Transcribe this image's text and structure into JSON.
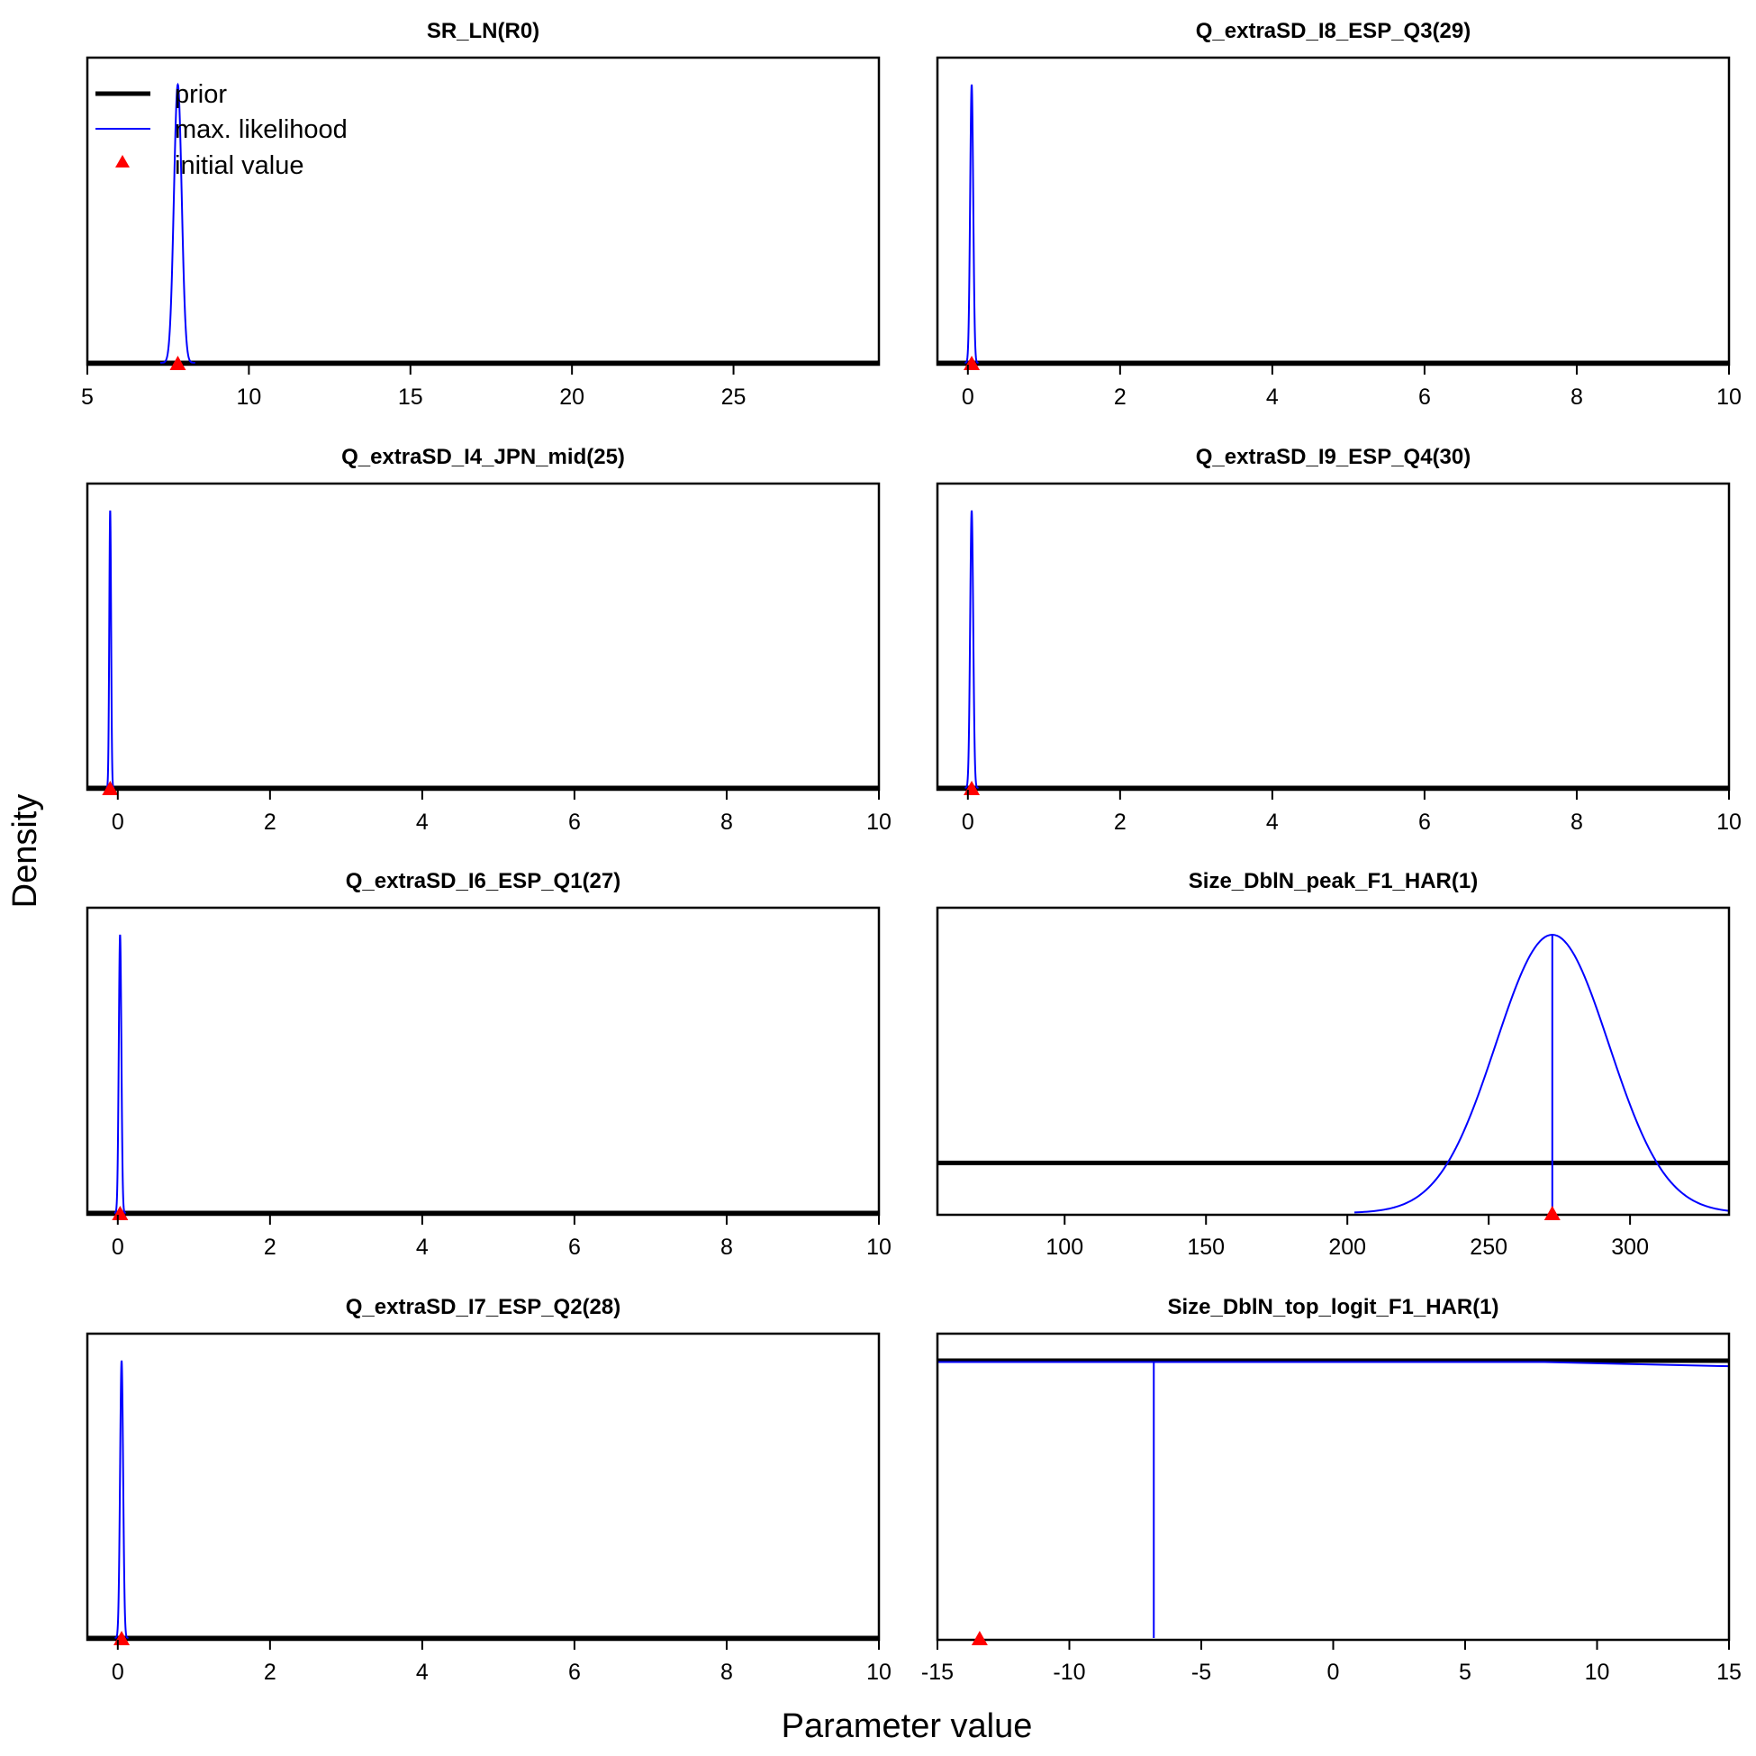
{
  "figure": {
    "ylabel": "Density",
    "xlabel": "Parameter value"
  },
  "legend": {
    "prior_label": "prior",
    "ml_label": "max. likelihood",
    "init_label": "initial value",
    "colors": {
      "prior": "#000000",
      "ml": "#0000ff",
      "init": "#ff0000"
    }
  },
  "chart_data": [
    {
      "type": "line",
      "title": "SR_LN(R0)",
      "xlim": [
        5,
        29.5
      ],
      "ticks": [
        5,
        10,
        15,
        20,
        25
      ],
      "ml_mode": 7.8,
      "ml_sd": 0.12,
      "ml_cut": 4.5,
      "init_value": 7.8,
      "prior": "flat",
      "prior_level": 0,
      "legend": true
    },
    {
      "type": "line",
      "title": "Q_extraSD_I8_ESP_Q3(29)",
      "xlim": [
        -0.4,
        10
      ],
      "ticks": [
        0,
        2,
        4,
        6,
        8,
        10
      ],
      "ml_mode": 0.05,
      "ml_sd": 0.02,
      "ml_cut": 4.5,
      "init_value": 0.05,
      "prior": "flat",
      "prior_level": 0
    },
    {
      "type": "line",
      "title": "Q_extraSD_I4_JPN_mid(25)",
      "xlim": [
        -0.4,
        10
      ],
      "ticks": [
        0,
        2,
        4,
        6,
        8,
        10
      ],
      "ml_mode": -0.1,
      "ml_sd": 0.012,
      "ml_cut": 4.5,
      "init_value": -0.1,
      "prior": "flat",
      "prior_level": 0
    },
    {
      "type": "line",
      "title": "Q_extraSD_I9_ESP_Q4(30)",
      "xlim": [
        -0.4,
        10
      ],
      "ticks": [
        0,
        2,
        4,
        6,
        8,
        10
      ],
      "ml_mode": 0.05,
      "ml_sd": 0.02,
      "ml_cut": 4.5,
      "init_value": 0.05,
      "prior": "flat",
      "prior_level": 0
    },
    {
      "type": "line",
      "title": "Q_extraSD_I6_ESP_Q1(27)",
      "xlim": [
        -0.4,
        10
      ],
      "ticks": [
        0,
        2,
        4,
        6,
        8,
        10
      ],
      "ml_mode": 0.03,
      "ml_sd": 0.017,
      "ml_cut": 4.5,
      "init_value": 0.03,
      "prior": "flat",
      "prior_level": 0
    },
    {
      "type": "line",
      "title": "Size_DblN_peak_F1_HAR(1)",
      "xlim": [
        55,
        335
      ],
      "ticks": [
        100,
        150,
        200,
        250,
        300
      ],
      "ml_mode": 272.5,
      "ml_sd": 20,
      "ml_cut": 3.5,
      "ml_vline": 272.5,
      "init_value": 272.5,
      "prior": "flat",
      "prior_level": 0.18
    },
    {
      "type": "line",
      "title": "Q_extraSD_I7_ESP_Q2(28)",
      "xlim": [
        -0.4,
        10
      ],
      "ticks": [
        0,
        2,
        4,
        6,
        8,
        10
      ],
      "ml_mode": 0.05,
      "ml_sd": 0.02,
      "ml_cut": 4.5,
      "init_value": 0.05,
      "prior": "flat",
      "prior_level": 0
    },
    {
      "type": "line",
      "title": "Size_DblN_top_logit_F1_HAR(1)",
      "xlim": [
        -15,
        15
      ],
      "ticks": [
        -15,
        -10,
        -5,
        0,
        5,
        10,
        15
      ],
      "ml_flat_points": [
        [
          -15,
          0.995
        ],
        [
          8,
          0.995
        ],
        [
          15,
          0.98
        ]
      ],
      "ml_vline": -6.8,
      "init_value": -13.4,
      "prior": "flat",
      "prior_level": 1.0
    }
  ]
}
